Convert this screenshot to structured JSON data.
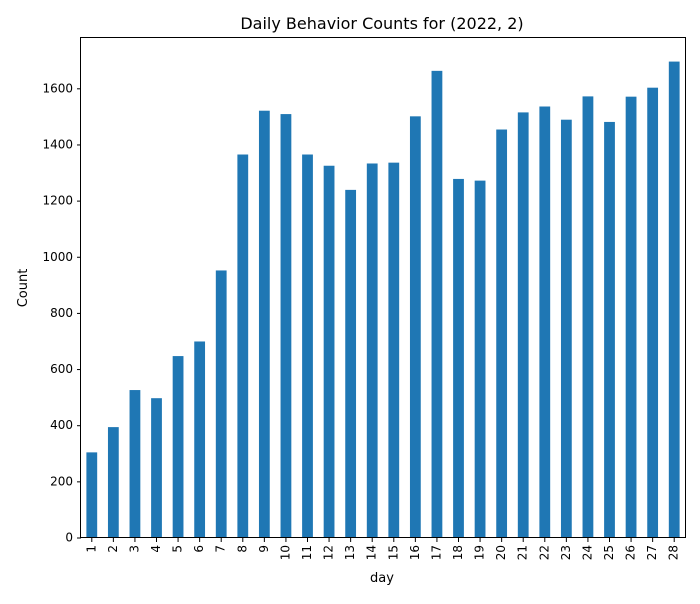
{
  "chart_data": {
    "type": "bar",
    "title": "Daily Behavior Counts for (2022, 2)",
    "xlabel": "day",
    "ylabel": "Count",
    "categories": [
      "1",
      "2",
      "3",
      "4",
      "5",
      "6",
      "7",
      "8",
      "9",
      "10",
      "11",
      "12",
      "13",
      "14",
      "15",
      "16",
      "17",
      "18",
      "19",
      "20",
      "21",
      "22",
      "23",
      "24",
      "25",
      "26",
      "27",
      "28"
    ],
    "values": [
      305,
      395,
      527,
      498,
      648,
      700,
      953,
      1366,
      1522,
      1510,
      1366,
      1326,
      1240,
      1334,
      1337,
      1502,
      1664,
      1279,
      1273,
      1455,
      1516,
      1537,
      1490,
      1573,
      1482,
      1572,
      1604,
      1697
    ],
    "ylim": [
      0,
      1781
    ],
    "yticks": [
      0,
      200,
      400,
      600,
      800,
      1000,
      1200,
      1400,
      1600
    ],
    "bar_color": "#1f77b4",
    "grid": false,
    "legend": false
  }
}
